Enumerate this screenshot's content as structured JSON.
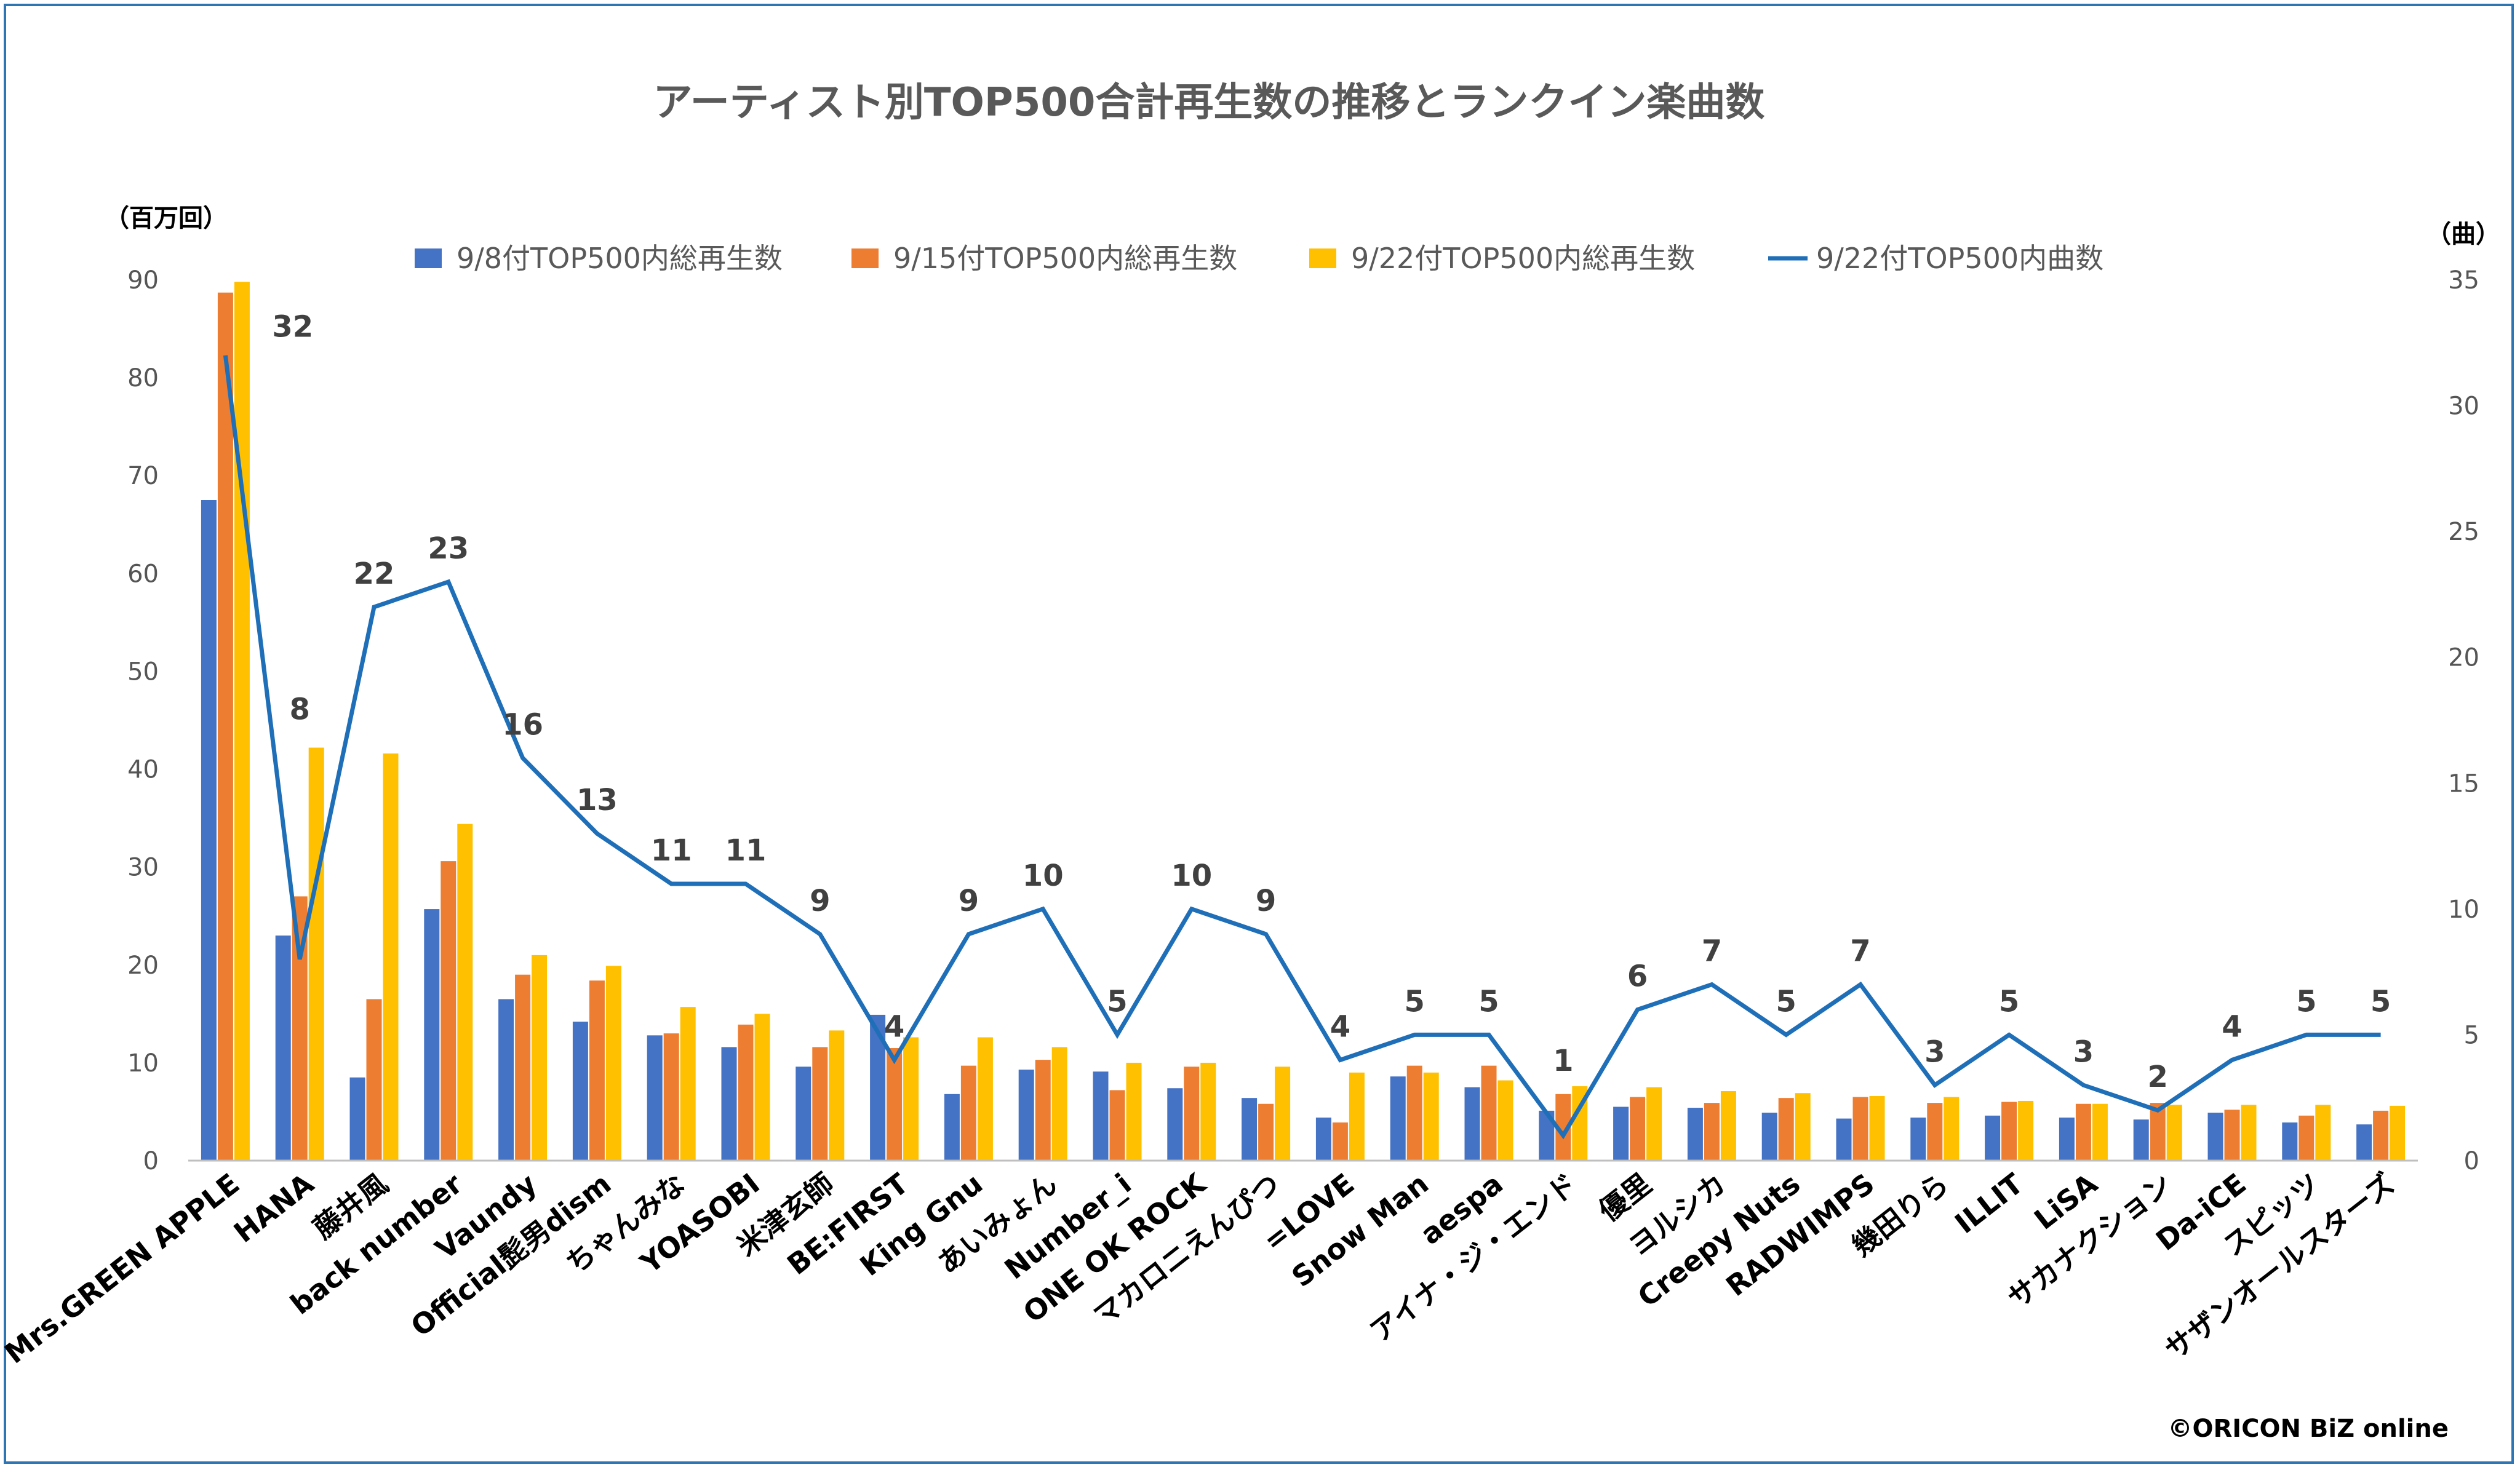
{
  "chart_data": {
    "type": "bar+line",
    "title": "アーティスト別TOP500合計再生数の推移とランクイン楽曲数",
    "y_left_unit": "（百万回）",
    "y_right_unit": "（曲）",
    "y_left_ticks": [
      "0",
      "10",
      "20",
      "30",
      "40",
      "50",
      "60",
      "70",
      "80",
      "90"
    ],
    "y_right_ticks": [
      "0",
      "5",
      "10",
      "15",
      "20",
      "25",
      "30",
      "35"
    ],
    "ylim_left": [
      0,
      90
    ],
    "ylim_right": [
      0,
      35
    ],
    "credit": "©ORICON BiZ online",
    "colors": {
      "s1": "#4472c4",
      "s2": "#ed7d31",
      "s3": "#ffc000",
      "line": "#1f6fb8",
      "axis": "#bfbfbf"
    },
    "categories": [
      "Mrs.GREEN APPLE",
      "HANA",
      "藤井風",
      "back number",
      "Vaundy",
      "Official髭男dism",
      "ちゃんみな",
      "YOASOBI",
      "米津玄師",
      "BE:FIRST",
      "King Gnu",
      "あいみょん",
      "Number_i",
      "ONE OK ROCK",
      "マカロニえんぴつ",
      "=LOVE",
      "Snow Man",
      "aespa",
      "アイナ・ジ・エンド",
      "優里",
      "ヨルシカ",
      "Creepy Nuts",
      "RADWIMPS",
      "幾田りら",
      "ILLIT",
      "LiSA",
      "サカナクション",
      "Da-iCE",
      "スピッツ",
      "サザンオールスターズ"
    ],
    "series": [
      {
        "name": "9/8付TOP500内総再生数",
        "values": [
          67.5,
          23.0,
          8.5,
          25.7,
          16.5,
          14.2,
          12.8,
          11.6,
          9.6,
          14.9,
          6.8,
          9.3,
          9.1,
          7.4,
          6.4,
          4.4,
          8.6,
          7.5,
          5.1,
          5.5,
          5.4,
          4.9,
          4.3,
          4.4,
          4.6,
          4.4,
          4.2,
          4.9,
          3.9,
          3.7
        ]
      },
      {
        "name": "9/15付TOP500内総再生数",
        "values": [
          88.7,
          27.0,
          16.5,
          30.6,
          19.0,
          18.4,
          13.0,
          13.9,
          11.6,
          11.5,
          9.7,
          10.3,
          7.2,
          9.6,
          5.8,
          3.9,
          9.7,
          9.7,
          6.8,
          6.5,
          5.9,
          6.4,
          6.5,
          5.9,
          6.0,
          5.8,
          5.9,
          5.2,
          4.6,
          5.1
        ]
      },
      {
        "name": "9/22付TOP500内総再生数",
        "values": [
          89.8,
          42.2,
          41.6,
          34.4,
          21.0,
          19.9,
          15.7,
          15.0,
          13.3,
          12.6,
          12.6,
          11.6,
          10.0,
          10.0,
          9.6,
          9.0,
          9.0,
          8.2,
          7.6,
          7.5,
          7.1,
          6.9,
          6.6,
          6.5,
          6.1,
          5.8,
          5.7,
          5.7,
          5.7,
          5.6
        ]
      }
    ],
    "line": {
      "name": "9/22付TOP500内曲数",
      "axis": "right",
      "values": [
        32,
        8,
        22,
        23,
        16,
        13,
        11,
        11,
        9,
        4,
        9,
        10,
        5,
        10,
        9,
        4,
        5,
        5,
        1,
        6,
        7,
        5,
        7,
        3,
        5,
        3,
        2,
        4,
        5,
        5
      ],
      "labels": [
        "32",
        "8",
        "22",
        "23",
        "16",
        "13",
        "11",
        "11",
        "9",
        "4",
        "9",
        "10",
        "5",
        "10",
        "9",
        "4",
        "5",
        "5",
        "1",
        "6",
        "7",
        "5",
        "7",
        "3",
        "5",
        "3",
        "2",
        "4",
        "5",
        "5"
      ]
    }
  }
}
